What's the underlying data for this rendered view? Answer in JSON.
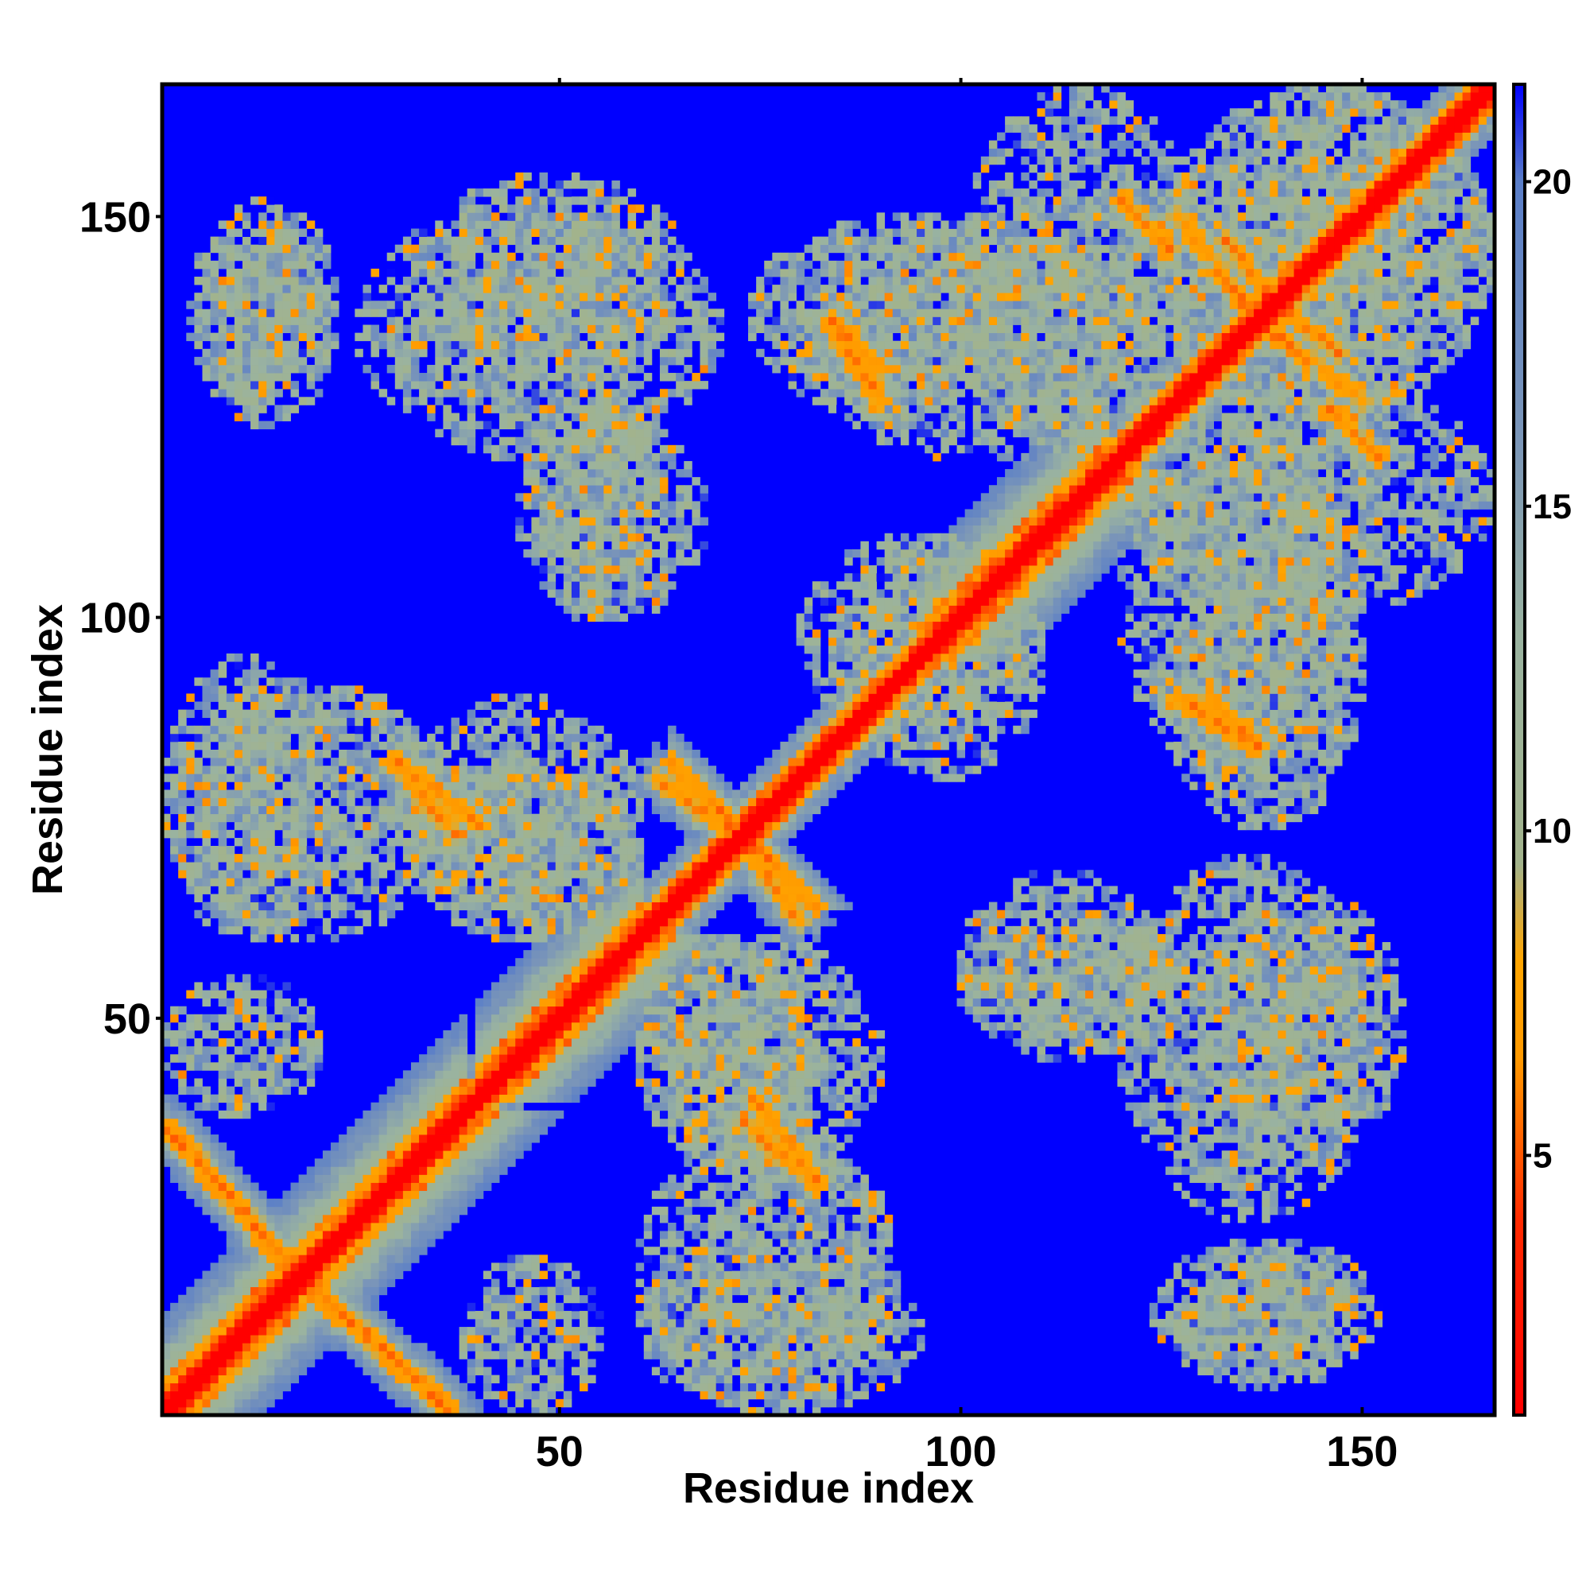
{
  "chart_data": {
    "type": "heatmap",
    "title": "",
    "xlabel": "Residue index",
    "ylabel": "Residue index",
    "xlim": [
      1,
      166
    ],
    "ylim": [
      1,
      166
    ],
    "x_ticks": [
      "50",
      "100",
      "150"
    ],
    "y_ticks": [
      "50",
      "100",
      "150"
    ],
    "colorbar": {
      "ticks": [
        "5",
        "10",
        "15",
        "20"
      ],
      "range": [
        1,
        21.5
      ],
      "colors": [
        {
          "value": 1.0,
          "color": "#ff0000"
        },
        {
          "value": 4.0,
          "color": "#ff2a00"
        },
        {
          "value": 6.5,
          "color": "#ff9900"
        },
        {
          "value": 8.0,
          "color": "#ffa500"
        },
        {
          "value": 9.5,
          "color": "#a2b38c"
        },
        {
          "value": 13.0,
          "color": "#9ab3a0"
        },
        {
          "value": 16.0,
          "color": "#7b96b8"
        },
        {
          "value": 20.0,
          "color": "#5a7ec8"
        },
        {
          "value": 21.5,
          "color": "#0000ff"
        }
      ]
    },
    "background_value": 21.5,
    "diagonal_value": 1.0,
    "contact_regions": [
      {
        "name": "helix-1",
        "x": [
          1,
          38
        ],
        "y": [
          1,
          38
        ],
        "kind": "diagonal-band"
      },
      {
        "name": "helix-2",
        "x": [
          40,
          60
        ],
        "y": [
          40,
          60
        ],
        "kind": "diagonal-band"
      },
      {
        "name": "helix-3",
        "x": [
          95,
          118
        ],
        "y": [
          95,
          118
        ],
        "kind": "diagonal-band"
      },
      {
        "name": "anti-1",
        "x": [
          13,
          36
        ],
        "y": [
          2,
          22
        ],
        "kind": "anti-diagonal"
      },
      {
        "name": "anti-2",
        "x": [
          1,
          22
        ],
        "y": [
          13,
          36
        ],
        "kind": "anti-diagonal"
      },
      {
        "name": "anti-3",
        "x": [
          30,
          40
        ],
        "y": [
          74,
          82
        ],
        "kind": "anti-diagonal"
      },
      {
        "name": "anti-4",
        "x": [
          62,
          76
        ],
        "y": [
          70,
          80
        ],
        "kind": "anti-diagonal"
      },
      {
        "name": "anti-5",
        "x": [
          72,
          82
        ],
        "y": [
          64,
          74
        ],
        "kind": "anti-diagonal"
      },
      {
        "name": "anti-6",
        "x": [
          73,
          82
        ],
        "y": [
          29,
          37
        ],
        "kind": "anti-diagonal"
      },
      {
        "name": "anti-7",
        "x": [
          84,
          90
        ],
        "y": [
          131,
          137
        ],
        "kind": "anti-diagonal"
      },
      {
        "name": "anti-8",
        "x": [
          120,
          126
        ],
        "y": [
          146,
          152
        ],
        "kind": "anti-diagonal"
      },
      {
        "name": "anti-9",
        "x": [
          133,
          140
        ],
        "y": [
          138,
          147
        ],
        "kind": "anti-diagonal"
      },
      {
        "name": "anti-10",
        "x": [
          137,
          150
        ],
        "y": [
          127,
          137
        ],
        "kind": "anti-diagonal"
      },
      {
        "name": "anti-11",
        "x": [
          127,
          136
        ],
        "y": [
          84,
          90
        ],
        "kind": "anti-diagonal"
      },
      {
        "name": "patch-1",
        "x": [
          1,
          36
        ],
        "y": [
          60,
          92
        ],
        "kind": "patch"
      },
      {
        "name": "patch-2",
        "x": [
          32,
          60
        ],
        "y": [
          60,
          82
        ],
        "kind": "patch"
      },
      {
        "name": "patch-3",
        "x": [
          60,
          90
        ],
        "y": [
          30,
          60
        ],
        "kind": "patch"
      },
      {
        "name": "patch-4",
        "x": [
          60,
          95
        ],
        "y": [
          1,
          22
        ],
        "kind": "patch"
      },
      {
        "name": "patch-5",
        "x": [
          38,
          55
        ],
        "y": [
          1,
          20
        ],
        "kind": "patch"
      },
      {
        "name": "patch-6",
        "x": [
          4,
          20
        ],
        "y": [
          127,
          150
        ],
        "kind": "patch"
      },
      {
        "name": "patch-7",
        "x": [
          25,
          70
        ],
        "y": [
          120,
          152
        ],
        "kind": "patch"
      },
      {
        "name": "patch-8",
        "x": [
          45,
          68
        ],
        "y": [
          100,
          125
        ],
        "kind": "patch"
      },
      {
        "name": "patch-9",
        "x": [
          74,
          110
        ],
        "y": [
          125,
          150
        ],
        "kind": "patch"
      },
      {
        "name": "patch-10",
        "x": [
          85,
          110
        ],
        "y": [
          80,
          110
        ],
        "kind": "patch"
      },
      {
        "name": "patch-11",
        "x": [
          100,
          130
        ],
        "y": [
          120,
          166
        ],
        "kind": "patch"
      },
      {
        "name": "patch-12",
        "x": [
          125,
          166
        ],
        "y": [
          125,
          166
        ],
        "kind": "patch"
      },
      {
        "name": "patch-13",
        "x": [
          120,
          150
        ],
        "y": [
          80,
          125
        ],
        "kind": "patch"
      },
      {
        "name": "patch-14",
        "x": [
          100,
          130
        ],
        "y": [
          46,
          62
        ],
        "kind": "patch"
      },
      {
        "name": "patch-15",
        "x": [
          130,
          155
        ],
        "y": [
          32,
          66
        ],
        "kind": "patch"
      },
      {
        "name": "patch-16",
        "x": [
          124,
          152
        ],
        "y": [
          5,
          22
        ],
        "kind": "patch"
      }
    ]
  }
}
